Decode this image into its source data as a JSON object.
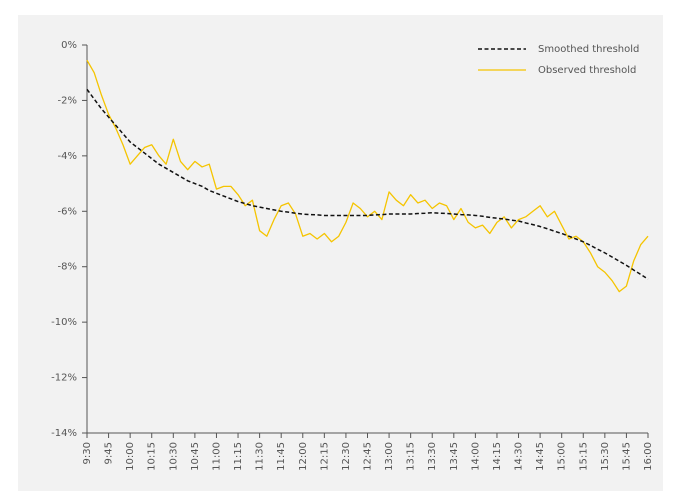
{
  "chart_data": {
    "type": "line",
    "x": [
      "9:30",
      "9:35",
      "9:40",
      "9:45",
      "9:50",
      "9:55",
      "10:00",
      "10:05",
      "10:10",
      "10:15",
      "10:20",
      "10:25",
      "10:30",
      "10:35",
      "10:40",
      "10:45",
      "10:50",
      "10:55",
      "11:00",
      "11:05",
      "11:10",
      "11:15",
      "11:20",
      "11:25",
      "11:30",
      "11:35",
      "11:40",
      "11:45",
      "11:50",
      "11:55",
      "12:00",
      "12:05",
      "12:10",
      "12:15",
      "12:20",
      "12:25",
      "12:30",
      "12:35",
      "12:40",
      "12:45",
      "12:50",
      "12:55",
      "13:00",
      "13:05",
      "13:10",
      "13:15",
      "13:20",
      "13:25",
      "13:30",
      "13:35",
      "13:40",
      "13:45",
      "13:50",
      "13:55",
      "14:00",
      "14:05",
      "14:10",
      "14:15",
      "14:20",
      "14:25",
      "14:30",
      "14:35",
      "14:40",
      "14:45",
      "14:50",
      "14:55",
      "15:00",
      "15:05",
      "15:10",
      "15:15",
      "15:20",
      "15:25",
      "15:30",
      "15:35",
      "15:40",
      "15:45",
      "15:50",
      "15:55",
      "16:00"
    ],
    "series": [
      {
        "name": "Smoothed threshold",
        "color": "#111111",
        "dashed": true,
        "values": [
          -1.6,
          -1.95,
          -2.3,
          -2.6,
          -2.9,
          -3.2,
          -3.5,
          -3.7,
          -3.9,
          -4.1,
          -4.3,
          -4.45,
          -4.6,
          -4.75,
          -4.9,
          -5.0,
          -5.1,
          -5.25,
          -5.35,
          -5.45,
          -5.55,
          -5.65,
          -5.72,
          -5.8,
          -5.85,
          -5.9,
          -5.95,
          -6.0,
          -6.03,
          -6.07,
          -6.1,
          -6.12,
          -6.13,
          -6.15,
          -6.15,
          -6.15,
          -6.15,
          -6.15,
          -6.15,
          -6.15,
          -6.13,
          -6.12,
          -6.1,
          -6.1,
          -6.1,
          -6.1,
          -6.08,
          -6.07,
          -6.05,
          -6.07,
          -6.08,
          -6.1,
          -6.12,
          -6.13,
          -6.15,
          -6.18,
          -6.22,
          -6.25,
          -6.28,
          -6.32,
          -6.35,
          -6.42,
          -6.48,
          -6.55,
          -6.63,
          -6.72,
          -6.8,
          -6.9,
          -7.0,
          -7.1,
          -7.23,
          -7.37,
          -7.5,
          -7.65,
          -7.8,
          -7.95,
          -8.12,
          -8.28,
          -8.45
        ]
      },
      {
        "name": "Observed threshold",
        "color": "#f5c400",
        "dashed": false,
        "values": [
          -0.55,
          -1.0,
          -1.8,
          -2.5,
          -3.0,
          -3.6,
          -4.3,
          -4.0,
          -3.7,
          -3.6,
          -4.0,
          -4.3,
          -3.4,
          -4.2,
          -4.5,
          -4.2,
          -4.4,
          -4.3,
          -5.2,
          -5.1,
          -5.1,
          -5.4,
          -5.8,
          -5.6,
          -6.7,
          -6.9,
          -6.3,
          -5.8,
          -5.7,
          -6.1,
          -6.9,
          -6.8,
          -7.0,
          -6.8,
          -7.1,
          -6.9,
          -6.4,
          -5.7,
          -5.9,
          -6.2,
          -6.0,
          -6.3,
          -5.3,
          -5.6,
          -5.8,
          -5.4,
          -5.7,
          -5.6,
          -5.9,
          -5.7,
          -5.8,
          -6.3,
          -5.9,
          -6.4,
          -6.6,
          -6.5,
          -6.8,
          -6.4,
          -6.2,
          -6.6,
          -6.3,
          -6.2,
          -6.0,
          -5.8,
          -6.2,
          -6.0,
          -6.5,
          -7.0,
          -6.9,
          -7.1,
          -7.5,
          -8.0,
          -8.2,
          -8.5,
          -8.9,
          -8.7,
          -7.8,
          -7.2,
          -6.9
        ]
      }
    ],
    "xticks": [
      "9:30",
      "9:45",
      "10:00",
      "10:15",
      "10:30",
      "10:45",
      "11:00",
      "11:15",
      "11:30",
      "11:45",
      "12:00",
      "12:15",
      "12:30",
      "12:45",
      "13:00",
      "13:15",
      "13:30",
      "13:45",
      "14:00",
      "14:15",
      "14:30",
      "14:45",
      "15:00",
      "15:15",
      "15:30",
      "15:45",
      "16:00"
    ],
    "ylim": [
      -14,
      0
    ],
    "yticks": [
      {
        "value": 0,
        "label": "0%"
      },
      {
        "value": -2,
        "label": "-2%"
      },
      {
        "value": -4,
        "label": "-4%"
      },
      {
        "value": -6,
        "label": "-6%"
      },
      {
        "value": -8,
        "label": "-8%"
      },
      {
        "value": -10,
        "label": "-10%"
      },
      {
        "value": -12,
        "label": "-12%"
      },
      {
        "value": -14,
        "label": "-14%"
      }
    ],
    "legend": "top-right",
    "grid": false
  }
}
